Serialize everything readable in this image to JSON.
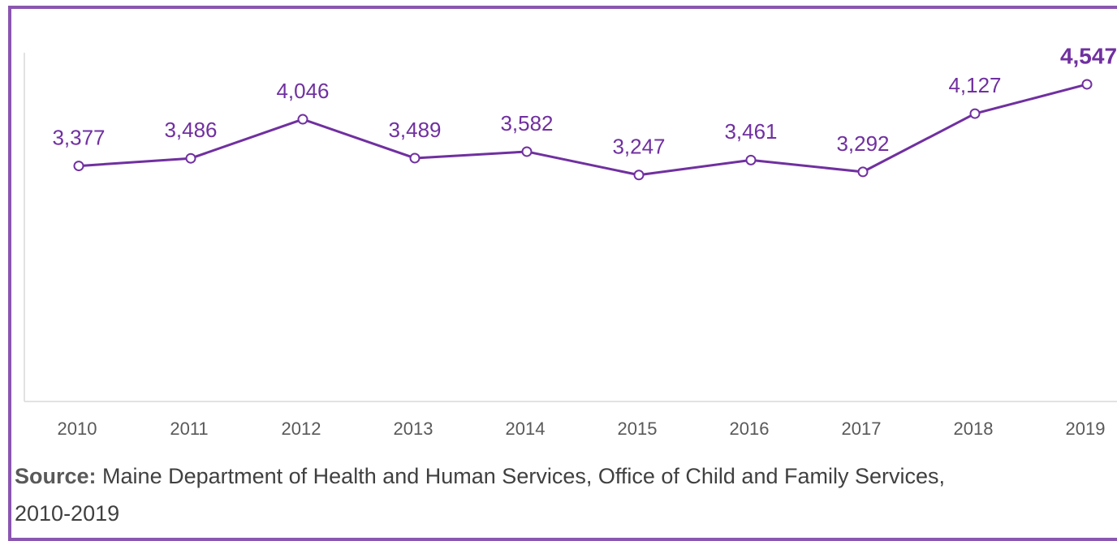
{
  "chart_data": {
    "type": "line",
    "categories": [
      "2010",
      "2011",
      "2012",
      "2013",
      "2014",
      "2015",
      "2016",
      "2017",
      "2018",
      "2019"
    ],
    "values": [
      3377,
      3486,
      4046,
      3489,
      3582,
      3247,
      3461,
      3292,
      4127,
      4547
    ],
    "value_labels": [
      "3,377",
      "3,486",
      "4,046",
      "3,489",
      "3,582",
      "3,247",
      "3,461",
      "3,292",
      "4,127",
      "4,547"
    ],
    "color": "#7030a0",
    "ylim": [
      0,
      5000
    ],
    "source_label": "Source:",
    "source": "Maine Department of Health and Human Services, Office of Child and Family Services, 2010-2019"
  }
}
